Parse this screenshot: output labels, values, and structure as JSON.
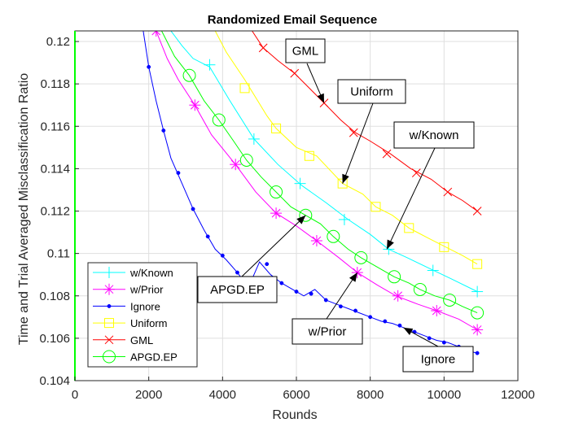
{
  "chart_data": {
    "type": "line",
    "title": "Randomized Email Sequence",
    "xlabel": "Rounds",
    "ylabel": "Time and Trial Averaged Misclassification Ratio",
    "xlim": [
      0,
      12000
    ],
    "ylim": [
      0.104,
      0.1205
    ],
    "xticks": [
      0,
      2000,
      4000,
      6000,
      8000,
      10000,
      12000
    ],
    "xtick_labels": [
      "0",
      "2000",
      "4000",
      "6000",
      "8000",
      "10000",
      "12000"
    ],
    "yticks": [
      0.104,
      0.106,
      0.108,
      0.11,
      0.112,
      0.114,
      0.116,
      0.118,
      0.12
    ],
    "ytick_labels": [
      "0.104",
      "0.106",
      "0.108",
      "0.11",
      "0.112",
      "0.114",
      "0.116",
      "0.118",
      "0.12"
    ],
    "grid": true,
    "legend_position": "bottom-left",
    "series": [
      {
        "name": "w/Known",
        "color": "#00ffff",
        "marker": "plus",
        "x": [
          2600,
          2900,
          3200,
          3650,
          4200,
          4850,
          5500,
          6150,
          6800,
          7400,
          8000,
          8500,
          9000,
          9600,
          10200,
          10900
        ],
        "y": [
          0.1205,
          0.1198,
          0.1192,
          0.1188,
          0.1172,
          0.1154,
          0.1142,
          0.1132,
          0.1124,
          0.1116,
          0.1109,
          0.1102,
          0.1098,
          0.1093,
          0.1088,
          0.1082
        ],
        "marker_x": [
          3650,
          4850,
          6100,
          7300,
          8500,
          9700,
          10900
        ],
        "marker_y": [
          0.1189,
          0.1154,
          0.1133,
          0.1116,
          0.1102,
          0.1092,
          0.1082
        ]
      },
      {
        "name": "w/Prior",
        "color": "#ff00ff",
        "marker": "star",
        "x": [
          2200,
          2500,
          2800,
          3250,
          3700,
          4350,
          4900,
          5450,
          6000,
          6550,
          7150,
          7650,
          8200,
          8700,
          9300,
          9800,
          10400,
          10900
        ],
        "y": [
          0.1205,
          0.1192,
          0.1182,
          0.117,
          0.1156,
          0.1142,
          0.1129,
          0.1119,
          0.1113,
          0.1106,
          0.1098,
          0.1091,
          0.1085,
          0.108,
          0.1076,
          0.1073,
          0.1069,
          0.1064
        ],
        "marker_x": [
          2200,
          3250,
          4350,
          5450,
          6550,
          7650,
          8750,
          9800,
          10900
        ],
        "marker_y": [
          0.1205,
          0.117,
          0.1142,
          0.1119,
          0.1106,
          0.1091,
          0.108,
          0.1073,
          0.1064
        ]
      },
      {
        "name": "Ignore",
        "color": "#0000ff",
        "marker": "dot",
        "x": [
          1850,
          2000,
          2200,
          2400,
          2600,
          2900,
          3200,
          3500,
          3800,
          4100,
          4400,
          4700,
          5000,
          5300,
          5600,
          5900,
          6200,
          6500,
          6800,
          7100,
          7400,
          7700,
          8000,
          8300,
          8600,
          8900,
          9200,
          9500,
          9800,
          10100,
          10400,
          10650,
          10900
        ],
        "y": [
          0.1205,
          0.1188,
          0.1172,
          0.1158,
          0.1145,
          0.1133,
          0.1121,
          0.1111,
          0.1102,
          0.1097,
          0.1091,
          0.1084,
          0.1096,
          0.109,
          0.1086,
          0.1083,
          0.108,
          0.1083,
          0.1078,
          0.1076,
          0.1074,
          0.1072,
          0.107,
          0.1068,
          0.1067,
          0.1065,
          0.1063,
          0.1061,
          0.1059,
          0.1058,
          0.1056,
          0.1054,
          0.1053
        ],
        "marker_x": [
          2000,
          2400,
          2800,
          3200,
          3600,
          4000,
          4400,
          4800,
          5200,
          5600,
          6000,
          6400,
          6800,
          7200,
          7600,
          8000,
          8400,
          8800,
          9200,
          9600,
          10000,
          10400,
          10900
        ],
        "marker_y": [
          0.1188,
          0.1158,
          0.1138,
          0.1121,
          0.1108,
          0.1099,
          0.1091,
          0.1082,
          0.1095,
          0.1086,
          0.1082,
          0.1081,
          0.1078,
          0.1075,
          0.1073,
          0.107,
          0.1068,
          0.1066,
          0.1063,
          0.106,
          0.1058,
          0.1056,
          0.1053
        ]
      },
      {
        "name": "Uniform",
        "color": "#ffff00",
        "marker": "square",
        "x": [
          3800,
          4100,
          4600,
          5200,
          5450,
          6000,
          6550,
          7250,
          7800,
          8150,
          8600,
          9050,
          9600,
          10050,
          10500,
          10900
        ],
        "y": [
          0.1205,
          0.1195,
          0.1182,
          0.1165,
          0.1159,
          0.115,
          0.1146,
          0.1133,
          0.1128,
          0.1122,
          0.1118,
          0.1112,
          0.1107,
          0.1103,
          0.1099,
          0.1095
        ],
        "marker_x": [
          4600,
          5450,
          6350,
          7250,
          8150,
          9050,
          10000,
          10900
        ],
        "marker_y": [
          0.1178,
          0.1159,
          0.1146,
          0.1133,
          0.1122,
          0.1112,
          0.1103,
          0.1095
        ]
      },
      {
        "name": "GML",
        "color": "#ff0000",
        "marker": "x",
        "x": [
          4800,
          5100,
          5500,
          5950,
          6350,
          6750,
          7200,
          7600,
          8000,
          8550,
          9100,
          9650,
          10100,
          10500,
          10900
        ],
        "y": [
          0.1205,
          0.1197,
          0.1191,
          0.1185,
          0.1178,
          0.1171,
          0.1163,
          0.1157,
          0.1153,
          0.1147,
          0.114,
          0.1135,
          0.1129,
          0.1125,
          0.112
        ],
        "marker_x": [
          5100,
          5950,
          6750,
          7550,
          8450,
          9250,
          10100,
          10900
        ],
        "marker_y": [
          0.1197,
          0.1185,
          0.1171,
          0.1157,
          0.1147,
          0.1138,
          0.1129,
          0.112
        ]
      },
      {
        "name": "APGD.EP",
        "color": "#00ff00",
        "marker": "circle",
        "x": [
          2350,
          2700,
          3100,
          3500,
          3900,
          4300,
          4650,
          5050,
          5450,
          5850,
          6250,
          6650,
          7000,
          7400,
          7750,
          8150,
          8650,
          9050,
          9350,
          9750,
          10150,
          10500,
          10900
        ],
        "y": [
          0.1205,
          0.1193,
          0.1184,
          0.1172,
          0.1163,
          0.1153,
          0.1144,
          0.1136,
          0.1129,
          0.1122,
          0.1118,
          0.1114,
          0.1108,
          0.1102,
          0.1098,
          0.1094,
          0.1089,
          0.1086,
          0.1083,
          0.108,
          0.1078,
          0.1075,
          0.1072
        ],
        "marker_x": [
          3100,
          3900,
          4650,
          5450,
          6250,
          7000,
          7750,
          8650,
          9350,
          10150,
          10900
        ],
        "marker_y": [
          0.1184,
          0.1163,
          0.1144,
          0.1129,
          0.1118,
          0.1108,
          0.1098,
          0.1089,
          0.1083,
          0.1078,
          0.1072
        ]
      }
    ],
    "annotations": [
      {
        "text": "GML",
        "series": "GML",
        "arrow_to": [
          6750,
          0.1171
        ]
      },
      {
        "text": "Uniform",
        "series": "Uniform",
        "arrow_to": [
          7250,
          0.1133
        ]
      },
      {
        "text": "w/Known",
        "series": "w/Known",
        "arrow_to": [
          8450,
          0.1102
        ]
      },
      {
        "text": "APGD.EP",
        "series": "APGD.EP",
        "arrow_to": [
          6250,
          0.1118
        ]
      },
      {
        "text": "w/Prior",
        "series": "w/Prior",
        "arrow_to": [
          7650,
          0.1091
        ]
      },
      {
        "text": "Ignore",
        "series": "Ignore",
        "arrow_to": [
          8900,
          0.1065
        ]
      }
    ]
  }
}
